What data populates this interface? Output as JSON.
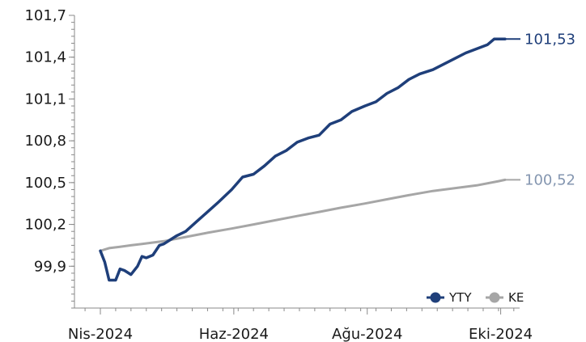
{
  "chart_data": {
    "type": "line",
    "title": "",
    "xlabel": "",
    "ylabel": "",
    "ylim": [
      99.6,
      101.7
    ],
    "y_ticks": [
      "101,7",
      "101,4",
      "101,1",
      "100,8",
      "100,5",
      "100,2",
      "99,9"
    ],
    "y_tick_values": [
      101.7,
      101.4,
      101.1,
      100.8,
      100.5,
      100.2,
      99.9
    ],
    "x_ticks": [
      "Nis-2024",
      "Haz-2024",
      "Ağu-2024",
      "Eki-2024"
    ],
    "x_tick_dates": [
      "2024-04-01",
      "2024-06-01",
      "2024-08-01",
      "2024-10-01"
    ],
    "xlim": [
      "2024-04-01",
      "2024-10-03"
    ],
    "legend_position": "bottom-right",
    "series": [
      {
        "name": "YTY",
        "color": "#1f3f7a",
        "end_label": "101,53",
        "x": [
          "2024-04-01",
          "2024-04-03",
          "2024-04-05",
          "2024-04-08",
          "2024-04-10",
          "2024-04-12",
          "2024-04-15",
          "2024-04-18",
          "2024-04-20",
          "2024-04-22",
          "2024-04-25",
          "2024-04-28",
          "2024-04-30",
          "2024-05-03",
          "2024-05-06",
          "2024-05-10",
          "2024-05-15",
          "2024-05-20",
          "2024-05-25",
          "2024-05-31",
          "2024-06-05",
          "2024-06-10",
          "2024-06-15",
          "2024-06-20",
          "2024-06-25",
          "2024-06-30",
          "2024-07-05",
          "2024-07-10",
          "2024-07-15",
          "2024-07-20",
          "2024-07-25",
          "2024-07-31",
          "2024-08-05",
          "2024-08-10",
          "2024-08-15",
          "2024-08-20",
          "2024-08-25",
          "2024-08-31",
          "2024-09-05",
          "2024-09-10",
          "2024-09-15",
          "2024-09-20",
          "2024-09-25",
          "2024-09-28",
          "2024-10-01",
          "2024-10-03"
        ],
        "y": [
          100.01,
          99.93,
          99.8,
          99.8,
          99.88,
          99.87,
          99.84,
          99.9,
          99.97,
          99.96,
          99.98,
          100.05,
          100.06,
          100.09,
          100.12,
          100.15,
          100.22,
          100.29,
          100.36,
          100.45,
          100.54,
          100.56,
          100.62,
          100.69,
          100.73,
          100.79,
          100.82,
          100.84,
          100.92,
          100.95,
          101.01,
          101.05,
          101.08,
          101.14,
          101.18,
          101.24,
          101.28,
          101.31,
          101.35,
          101.39,
          101.43,
          101.46,
          101.49,
          101.53,
          101.53,
          101.53
        ]
      },
      {
        "name": "KE",
        "color": "#a6a6a6",
        "end_label": "100,52",
        "x": [
          "2024-04-01",
          "2024-04-05",
          "2024-04-10",
          "2024-04-15",
          "2024-04-20",
          "2024-04-25",
          "2024-04-30",
          "2024-05-10",
          "2024-05-20",
          "2024-05-31",
          "2024-06-10",
          "2024-06-20",
          "2024-06-30",
          "2024-07-10",
          "2024-07-20",
          "2024-07-31",
          "2024-08-10",
          "2024-08-20",
          "2024-08-31",
          "2024-09-10",
          "2024-09-20",
          "2024-09-30",
          "2024-10-03"
        ],
        "y": [
          100.01,
          100.03,
          100.04,
          100.05,
          100.06,
          100.07,
          100.08,
          100.11,
          100.14,
          100.17,
          100.2,
          100.23,
          100.26,
          100.29,
          100.32,
          100.35,
          100.38,
          100.41,
          100.44,
          100.46,
          100.48,
          100.51,
          100.52
        ]
      }
    ]
  }
}
